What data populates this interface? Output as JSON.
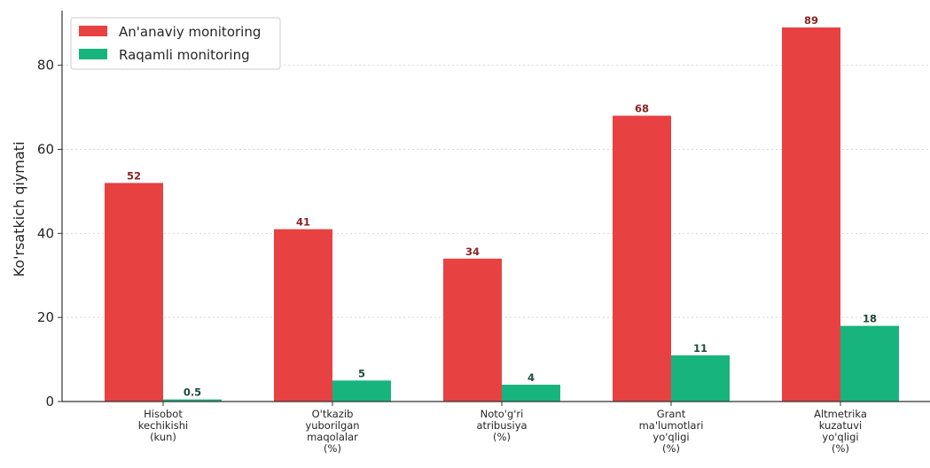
{
  "chart_data": {
    "type": "bar",
    "title": "",
    "xlabel": "",
    "ylabel": "Ko'rsatkich qiymati",
    "ylim": [
      0,
      93
    ],
    "yticks": [
      0,
      20,
      40,
      60,
      80
    ],
    "grid": "horizontal-dashed",
    "legend_position": "top-left",
    "categories": [
      [
        "Hisobot",
        "kechikishi",
        "(kun)"
      ],
      [
        "O'tkazib",
        "yuborilgan",
        "maqolalar",
        "(%)"
      ],
      [
        "Noto'g'ri",
        "atribusiya",
        "(%)"
      ],
      [
        "Grant",
        "ma'lumotlari",
        "yo'qligi",
        "(%)"
      ],
      [
        "Altmetrika",
        "kuzatuvi",
        "yo'qligi",
        "(%)"
      ]
    ],
    "series": [
      {
        "name": "An'anaviy monitoring",
        "color": "#e84142",
        "label_color": "#8b2323",
        "values": [
          52,
          41,
          34,
          68,
          89
        ],
        "labels": [
          "52",
          "41",
          "34",
          "68",
          "89"
        ]
      },
      {
        "name": "Raqamli monitoring",
        "color": "#17b47e",
        "label_color": "#1f4a38",
        "values": [
          0.5,
          5,
          4,
          11,
          18
        ],
        "labels": [
          "0.5",
          "5",
          "4",
          "11",
          "18"
        ]
      }
    ]
  }
}
